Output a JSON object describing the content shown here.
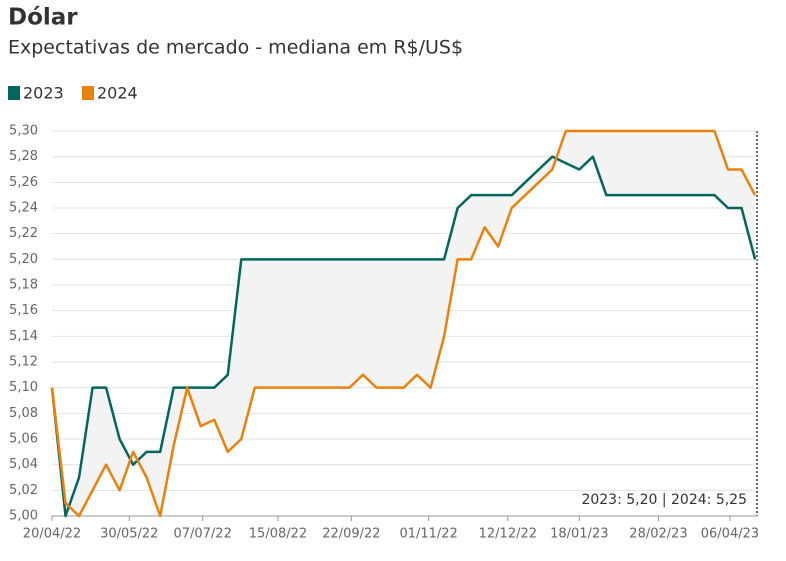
{
  "chart_data": {
    "type": "line",
    "title": "Dólar",
    "subtitle": "Expectativas de mercado - mediana em R$/US$",
    "x": [
      "2022-04-20",
      "2022-04-27",
      "2022-05-04",
      "2022-05-11",
      "2022-05-18",
      "2022-05-25",
      "2022-06-01",
      "2022-06-08",
      "2022-06-15",
      "2022-06-22",
      "2022-06-29",
      "2022-07-06",
      "2022-07-13",
      "2022-07-20",
      "2022-07-27",
      "2022-08-03",
      "2022-08-10",
      "2022-08-17",
      "2022-08-24",
      "2022-08-31",
      "2022-09-07",
      "2022-09-14",
      "2022-09-21",
      "2022-09-28",
      "2022-10-05",
      "2022-10-12",
      "2022-10-19",
      "2022-10-26",
      "2022-11-02",
      "2022-11-09",
      "2022-11-16",
      "2022-11-23",
      "2022-11-30",
      "2022-12-07",
      "2022-12-14",
      "2022-12-21",
      "2022-12-28",
      "2023-01-04",
      "2023-01-11",
      "2023-01-18",
      "2023-01-25",
      "2023-02-01",
      "2023-02-08",
      "2023-02-15",
      "2023-02-22",
      "2023-03-01",
      "2023-03-08",
      "2023-03-15",
      "2023-03-22",
      "2023-03-29",
      "2023-04-05",
      "2023-04-12",
      "2023-04-19"
    ],
    "series": [
      {
        "name": "2023",
        "color": "#00665e",
        "values": [
          5.1,
          5.0,
          5.03,
          5.1,
          5.1,
          5.06,
          5.04,
          5.05,
          5.05,
          5.1,
          5.1,
          5.1,
          5.1,
          5.11,
          5.2,
          5.2,
          5.2,
          5.2,
          5.2,
          5.2,
          5.2,
          5.2,
          5.2,
          5.2,
          5.2,
          5.2,
          5.2,
          5.2,
          5.2,
          5.2,
          5.24,
          5.25,
          5.25,
          5.25,
          5.25,
          5.26,
          5.27,
          5.28,
          5.275,
          5.27,
          5.28,
          5.25,
          5.25,
          5.25,
          5.25,
          5.25,
          5.25,
          5.25,
          5.25,
          5.25,
          5.24,
          5.24,
          5.2
        ]
      },
      {
        "name": "2024",
        "color": "#e8820c",
        "values": [
          5.1,
          5.01,
          5.0,
          5.02,
          5.04,
          5.02,
          5.05,
          5.03,
          5.0,
          5.055,
          5.1,
          5.07,
          5.075,
          5.05,
          5.06,
          5.1,
          5.1,
          5.1,
          5.1,
          5.1,
          5.1,
          5.1,
          5.1,
          5.11,
          5.1,
          5.1,
          5.1,
          5.11,
          5.1,
          5.14,
          5.2,
          5.2,
          5.225,
          5.21,
          5.24,
          5.25,
          5.26,
          5.27,
          5.3,
          5.3,
          5.3,
          5.3,
          5.3,
          5.3,
          5.3,
          5.3,
          5.3,
          5.3,
          5.3,
          5.3,
          5.27,
          5.27,
          5.25
        ]
      }
    ],
    "xlim": [
      "2022-04-20",
      "2023-04-20"
    ],
    "xticks": [
      {
        "value": "2022-04-20",
        "label": "20/04/22"
      },
      {
        "value": "2022-05-30",
        "label": "30/05/22"
      },
      {
        "value": "2022-07-07",
        "label": "07/07/22"
      },
      {
        "value": "2022-08-15",
        "label": "15/08/22"
      },
      {
        "value": "2022-09-22",
        "label": "22/09/22"
      },
      {
        "value": "2022-11-01",
        "label": "01/11/22"
      },
      {
        "value": "2022-12-12",
        "label": "12/12/22"
      },
      {
        "value": "2023-01-18",
        "label": "18/01/23"
      },
      {
        "value": "2023-02-28",
        "label": "28/02/23"
      },
      {
        "value": "2023-04-06",
        "label": "06/04/23"
      }
    ],
    "ylim": [
      5.0,
      5.3
    ],
    "yticks": [
      {
        "value": 5.0,
        "label": "5,00"
      },
      {
        "value": 5.02,
        "label": "5,02"
      },
      {
        "value": 5.04,
        "label": "5,04"
      },
      {
        "value": 5.06,
        "label": "5,06"
      },
      {
        "value": 5.08,
        "label": "5,08"
      },
      {
        "value": 5.1,
        "label": "5,10"
      },
      {
        "value": 5.12,
        "label": "5,12"
      },
      {
        "value": 5.14,
        "label": "5,14"
      },
      {
        "value": 5.16,
        "label": "5,16"
      },
      {
        "value": 5.18,
        "label": "5,18"
      },
      {
        "value": 5.2,
        "label": "5,20"
      },
      {
        "value": 5.22,
        "label": "5,22"
      },
      {
        "value": 5.24,
        "label": "5,24"
      },
      {
        "value": 5.26,
        "label": "5,26"
      },
      {
        "value": 5.28,
        "label": "5,28"
      },
      {
        "value": 5.3,
        "label": "5,30"
      }
    ],
    "grid": true,
    "annotation": "2023: 5,20 | 2024: 5,25"
  }
}
